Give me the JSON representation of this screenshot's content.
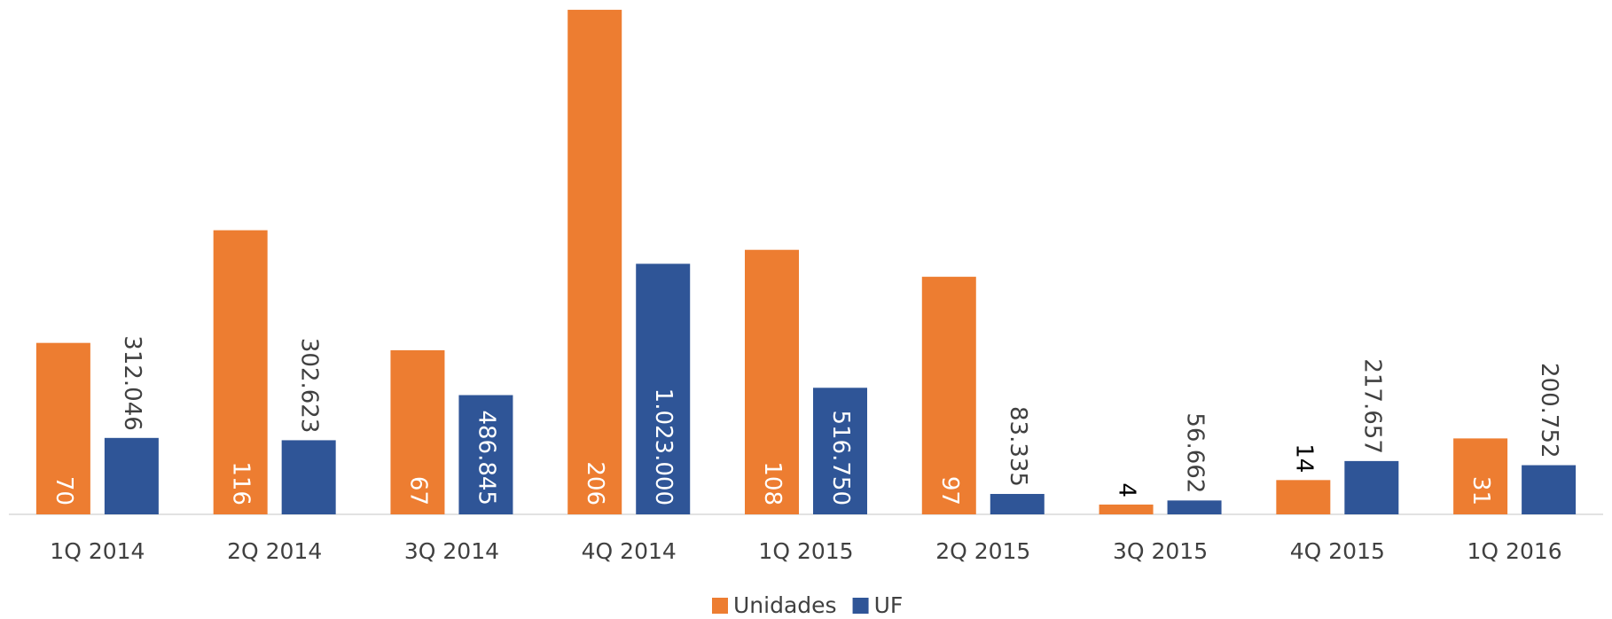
{
  "chart_data": {
    "type": "bar",
    "categories": [
      "1Q 2014",
      "2Q 2014",
      "3Q 2014",
      "4Q 2014",
      "1Q 2015",
      "2Q 2015",
      "3Q 2015",
      "4Q 2015",
      "1Q 2016"
    ],
    "series": [
      {
        "name": "Unidades",
        "color": "#ED7D31",
        "values": [
          70,
          116,
          67,
          206,
          108,
          97,
          4,
          14,
          31
        ]
      },
      {
        "name": "UF",
        "color": "#2F5597",
        "axis": "y2",
        "values": [
          312046,
          302623,
          486845,
          1023000,
          516750,
          83335,
          56662,
          217657,
          200752
        ],
        "value_labels": [
          "312.046",
          "302.623",
          "486.845",
          "1.023.000",
          "516.750",
          "83.335",
          "56.662",
          "217.657",
          "200.752"
        ]
      }
    ],
    "ylim": [
      0,
      210
    ],
    "y2lim": [
      0,
      2100000
    ],
    "legend": "bottom"
  }
}
